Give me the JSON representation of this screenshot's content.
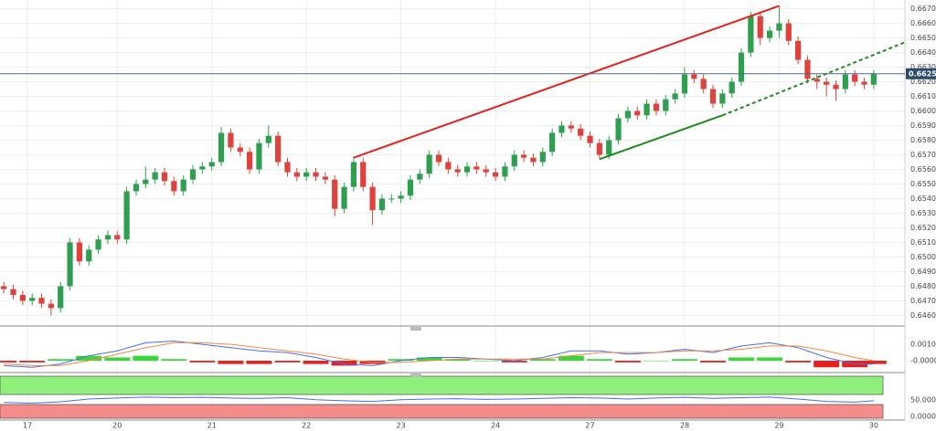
{
  "chart_data": [
    {
      "type": "candlestick",
      "up_color": "#2e9e4f",
      "down_color": "#e0413a",
      "xlim": [
        -0.4,
        95.3
      ],
      "ylim": [
        0.6454,
        0.6676
      ],
      "xticks": [
        {
          "value": 2.5,
          "label": "17"
        },
        {
          "value": 12,
          "label": "20"
        },
        {
          "value": 22,
          "label": "21"
        },
        {
          "value": 32,
          "label": "22"
        },
        {
          "value": 42,
          "label": "23"
        },
        {
          "value": 52,
          "label": "24"
        },
        {
          "value": 62,
          "label": "27"
        },
        {
          "value": 72,
          "label": "28"
        },
        {
          "value": 82,
          "label": "29"
        },
        {
          "value": 92,
          "label": "30"
        }
      ],
      "yticks": [
        {
          "value": 0.646,
          "label": "0.6460"
        },
        {
          "value": 0.647,
          "label": "0.6470"
        },
        {
          "value": 0.648,
          "label": "0.6480"
        },
        {
          "value": 0.649,
          "label": "0.6490"
        },
        {
          "value": 0.65,
          "label": "0.6500"
        },
        {
          "value": 0.651,
          "label": "0.6510"
        },
        {
          "value": 0.652,
          "label": "0.6520"
        },
        {
          "value": 0.653,
          "label": "0.6530"
        },
        {
          "value": 0.654,
          "label": "0.6540"
        },
        {
          "value": 0.655,
          "label": "0.6550"
        },
        {
          "value": 0.656,
          "label": "0.6560"
        },
        {
          "value": 0.657,
          "label": "0.6570"
        },
        {
          "value": 0.658,
          "label": "0.6580"
        },
        {
          "value": 0.659,
          "label": "0.6590"
        },
        {
          "value": 0.66,
          "label": "0.6600"
        },
        {
          "value": 0.661,
          "label": "0.6610"
        },
        {
          "value": 0.662,
          "label": "0.6620"
        },
        {
          "value": 0.663,
          "label": "0.6630"
        },
        {
          "value": 0.664,
          "label": "0.6640"
        },
        {
          "value": 0.665,
          "label": "0.6650"
        },
        {
          "value": 0.666,
          "label": "0.6660"
        },
        {
          "value": 0.667,
          "label": "0.6670"
        }
      ],
      "last_price": 0.66255,
      "candles": [
        [
          0.648,
          0.6483,
          0.6475,
          0.6478
        ],
        [
          0.6478,
          0.6481,
          0.6471,
          0.6474
        ],
        [
          0.6474,
          0.6477,
          0.6467,
          0.647
        ],
        [
          0.647,
          0.6475,
          0.6467,
          0.6472
        ],
        [
          0.6472,
          0.6475,
          0.6465,
          0.6468
        ],
        [
          0.6468,
          0.6471,
          0.646,
          0.6465
        ],
        [
          0.6465,
          0.6483,
          0.6462,
          0.648
        ],
        [
          0.648,
          0.6513,
          0.6477,
          0.651
        ],
        [
          0.651,
          0.6513,
          0.6494,
          0.6497
        ],
        [
          0.6497,
          0.6508,
          0.6494,
          0.6505
        ],
        [
          0.6505,
          0.6515,
          0.6502,
          0.6512
        ],
        [
          0.6512,
          0.6518,
          0.6509,
          0.6515
        ],
        [
          0.6515,
          0.6518,
          0.6509,
          0.6512
        ],
        [
          0.6512,
          0.6548,
          0.6509,
          0.6545
        ],
        [
          0.6545,
          0.6553,
          0.6542,
          0.655
        ],
        [
          0.655,
          0.6562,
          0.6547,
          0.6553
        ],
        [
          0.6553,
          0.6561,
          0.655,
          0.6558
        ],
        [
          0.6558,
          0.6561,
          0.6549,
          0.6552
        ],
        [
          0.6552,
          0.6555,
          0.6542,
          0.6545
        ],
        [
          0.6545,
          0.6556,
          0.6542,
          0.6553
        ],
        [
          0.6553,
          0.6563,
          0.655,
          0.656
        ],
        [
          0.656,
          0.6565,
          0.6557,
          0.6562
        ],
        [
          0.6562,
          0.6568,
          0.6559,
          0.6565
        ],
        [
          0.6565,
          0.6589,
          0.6562,
          0.6585
        ],
        [
          0.6585,
          0.6588,
          0.6572,
          0.6575
        ],
        [
          0.6575,
          0.6578,
          0.6569,
          0.6572
        ],
        [
          0.6572,
          0.6575,
          0.6557,
          0.656
        ],
        [
          0.656,
          0.6581,
          0.6557,
          0.6578
        ],
        [
          0.6578,
          0.659,
          0.6575,
          0.6583
        ],
        [
          0.6583,
          0.6586,
          0.6562,
          0.6565
        ],
        [
          0.6565,
          0.6568,
          0.6555,
          0.6558
        ],
        [
          0.6558,
          0.6561,
          0.6552,
          0.6555
        ],
        [
          0.6555,
          0.6561,
          0.6552,
          0.6558
        ],
        [
          0.6558,
          0.6561,
          0.6552,
          0.6555
        ],
        [
          0.6555,
          0.6558,
          0.655,
          0.6553
        ],
        [
          0.6553,
          0.6556,
          0.6528,
          0.6533
        ],
        [
          0.6533,
          0.6551,
          0.653,
          0.6548
        ],
        [
          0.6548,
          0.6569,
          0.6545,
          0.6565
        ],
        [
          0.6565,
          0.6568,
          0.6545,
          0.6548
        ],
        [
          0.6548,
          0.6551,
          0.6522,
          0.6532
        ],
        [
          0.6532,
          0.6543,
          0.6529,
          0.654
        ],
        [
          0.654,
          0.6543,
          0.6537,
          0.654
        ],
        [
          0.654,
          0.6545,
          0.6537,
          0.6542
        ],
        [
          0.6542,
          0.6556,
          0.6539,
          0.6553
        ],
        [
          0.6553,
          0.656,
          0.655,
          0.6557
        ],
        [
          0.6557,
          0.6573,
          0.6554,
          0.657
        ],
        [
          0.657,
          0.6573,
          0.6562,
          0.6565
        ],
        [
          0.6565,
          0.6568,
          0.6557,
          0.656
        ],
        [
          0.656,
          0.6563,
          0.6555,
          0.6558
        ],
        [
          0.6558,
          0.6565,
          0.6555,
          0.6562
        ],
        [
          0.6562,
          0.6565,
          0.6557,
          0.656
        ],
        [
          0.656,
          0.6563,
          0.6555,
          0.6558
        ],
        [
          0.6558,
          0.6561,
          0.6552,
          0.6555
        ],
        [
          0.6555,
          0.6565,
          0.6552,
          0.6562
        ],
        [
          0.6562,
          0.6573,
          0.6559,
          0.657
        ],
        [
          0.657,
          0.6573,
          0.6565,
          0.6568
        ],
        [
          0.6568,
          0.6571,
          0.6562,
          0.6565
        ],
        [
          0.6565,
          0.6575,
          0.6562,
          0.6572
        ],
        [
          0.6572,
          0.6588,
          0.6569,
          0.6585
        ],
        [
          0.6585,
          0.6593,
          0.6582,
          0.659
        ],
        [
          0.659,
          0.6593,
          0.6585,
          0.6588
        ],
        [
          0.6588,
          0.6591,
          0.658,
          0.6583
        ],
        [
          0.6583,
          0.6586,
          0.6575,
          0.6578
        ],
        [
          0.6578,
          0.6581,
          0.6567,
          0.657
        ],
        [
          0.657,
          0.6583,
          0.6567,
          0.658
        ],
        [
          0.658,
          0.6598,
          0.6577,
          0.6595
        ],
        [
          0.6595,
          0.6603,
          0.6592,
          0.66
        ],
        [
          0.66,
          0.6603,
          0.6594,
          0.6597
        ],
        [
          0.6597,
          0.6608,
          0.6594,
          0.6605
        ],
        [
          0.6605,
          0.6608,
          0.6597,
          0.66
        ],
        [
          0.66,
          0.6611,
          0.6597,
          0.6608
        ],
        [
          0.6608,
          0.6615,
          0.6605,
          0.6612
        ],
        [
          0.6612,
          0.663,
          0.6609,
          0.6625
        ],
        [
          0.6625,
          0.6628,
          0.6619,
          0.6622
        ],
        [
          0.6622,
          0.6625,
          0.6612,
          0.6615
        ],
        [
          0.6615,
          0.6618,
          0.6602,
          0.6605
        ],
        [
          0.6605,
          0.6615,
          0.6602,
          0.6612
        ],
        [
          0.6612,
          0.6623,
          0.6609,
          0.662
        ],
        [
          0.662,
          0.6643,
          0.6617,
          0.664
        ],
        [
          0.664,
          0.6668,
          0.6637,
          0.6665
        ],
        [
          0.6665,
          0.6668,
          0.6645,
          0.665
        ],
        [
          0.665,
          0.6658,
          0.6647,
          0.6655
        ],
        [
          0.6655,
          0.6672,
          0.665,
          0.666
        ],
        [
          0.666,
          0.6663,
          0.6645,
          0.6648
        ],
        [
          0.6648,
          0.6651,
          0.6632,
          0.6635
        ],
        [
          0.6635,
          0.6638,
          0.6619,
          0.6622
        ],
        [
          0.6622,
          0.6625,
          0.6615,
          0.662
        ],
        [
          0.662,
          0.6623,
          0.661,
          0.6618
        ],
        [
          0.6618,
          0.6621,
          0.6607,
          0.6615
        ],
        [
          0.6615,
          0.6628,
          0.6612,
          0.6625
        ],
        [
          0.6625,
          0.6628,
          0.6617,
          0.662
        ],
        [
          0.662,
          0.6623,
          0.6615,
          0.6618
        ],
        [
          0.6618,
          0.6628,
          0.6615,
          0.66255
        ]
      ],
      "trendlines": [
        {
          "color": "#e8201c",
          "dashed": false,
          "x": [
            37,
            82
          ],
          "y": [
            0.6568,
            0.6672
          ]
        },
        {
          "color": "#1f8a1f",
          "dashed": false,
          "x": [
            63,
            76
          ],
          "y": [
            0.6567,
            0.6597
          ]
        },
        {
          "color": "#1f8a1f",
          "dashed": true,
          "x": [
            76,
            95.3
          ],
          "y": [
            0.6597,
            0.6647
          ]
        }
      ]
    },
    {
      "type": "macd",
      "xlim": [
        -0.4,
        95.3
      ],
      "ylim": [
        -0.0005,
        0.0019
      ],
      "yticks": [
        {
          "value": 0.001,
          "label": "0.0010"
        },
        {
          "value": 0,
          "label": "-0.0000"
        }
      ],
      "hist_up_color": "#39d839",
      "hist_down_color": "#e8201c",
      "x": [
        0,
        3,
        6,
        9,
        12,
        15,
        18,
        21,
        24,
        27,
        30,
        33,
        36,
        39,
        42,
        45,
        48,
        51,
        54,
        57,
        60,
        63,
        66,
        69,
        72,
        75,
        78,
        81,
        84,
        87,
        90,
        92
      ],
      "series": [
        {
          "color": "#4a6cf0",
          "values": [
            -0.0003,
            -0.0004,
            -0.0002,
            0.0003,
            0.0006,
            0.0011,
            0.0012,
            0.001,
            0.0008,
            0.0006,
            0.0005,
            0.0002,
            -0.0002,
            -0.0003,
            0,
            0.0002,
            0.0002,
            0.0001,
            0,
            0.0002,
            0.0006,
            0.0006,
            0.0004,
            0.0005,
            0.0007,
            0.0005,
            0.0009,
            0.0011,
            0.0008,
            0.0002,
            -0.0002,
            -0.0002
          ]
        },
        {
          "color": "#f08a3c",
          "values": [
            -0.0002,
            -0.0003,
            -0.0003,
            0,
            0.0004,
            0.0008,
            0.0011,
            0.0011,
            0.001,
            0.0008,
            0.0006,
            0.0004,
            0.0001,
            -0.0001,
            -0.0001,
            0,
            0.0001,
            0.0001,
            0.0001,
            0.0001,
            0.0003,
            0.0005,
            0.0005,
            0.0005,
            0.0006,
            0.0006,
            0.0007,
            0.0009,
            0.0009,
            0.0006,
            0.0002,
            0
          ]
        }
      ],
      "histogram": [
        -0.0001,
        -0.0001,
        0.0001,
        0.0003,
        0.0002,
        0.0003,
        0.0001,
        -0.0001,
        -0.0002,
        -0.0002,
        -0.0001,
        -0.0002,
        -0.0003,
        -0.0002,
        0.0001,
        0.0002,
        0.0001,
        0,
        -0.0001,
        0.0001,
        0.0003,
        0.0001,
        -0.0001,
        0,
        0.0001,
        -0.0001,
        0.0002,
        0.0002,
        -0.0001,
        -0.0004,
        -0.0004,
        -0.0002
      ]
    },
    {
      "type": "line",
      "xlim": [
        -0.4,
        95.3
      ],
      "ylim": [
        -5,
        120
      ],
      "yticks": [
        {
          "value": 50,
          "label": "50.0000"
        },
        {
          "value": 0,
          "label": "0.0000"
        }
      ],
      "x": [
        0,
        3,
        6,
        9,
        12,
        15,
        18,
        21,
        24,
        27,
        30,
        33,
        36,
        39,
        42,
        45,
        48,
        51,
        54,
        57,
        60,
        63,
        66,
        69,
        72,
        75,
        78,
        81,
        84,
        87,
        90,
        92
      ],
      "series": [
        {
          "color": "#4a6cf0",
          "values": [
            42,
            40,
            44,
            52,
            55,
            58,
            56,
            57,
            55,
            54,
            56,
            50,
            47,
            45,
            50,
            52,
            53,
            51,
            52,
            54,
            56,
            55,
            52,
            55,
            57,
            54,
            56,
            58,
            52,
            45,
            43,
            47
          ]
        }
      ]
    }
  ]
}
